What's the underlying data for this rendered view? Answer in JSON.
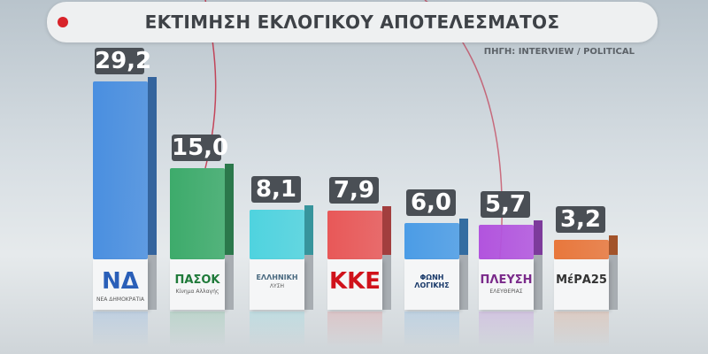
{
  "header": {
    "title": "ΕΚΤΙΜΗΣΗ ΕΚΛΟΓΙΚΟΥ ΑΠΟΤΕΛΕΣΜΑΤΟΣ",
    "source": "ΠΗΓΗ: INTERVIEW / POLITICAL"
  },
  "chart_data": {
    "type": "bar",
    "title": "ΕΚΤΙΜΗΣΗ ΕΚΛΟΓΙΚΟΥ ΑΠΟΤΕΛΕΣΜΑΤΟΣ",
    "categories": [
      "ΝΕΑ ΔΗΜΟΚΡΑΤΙΑ",
      "ΠΑΣΟΚ",
      "ΕΛΛΗΝΙΚΗ ΛΥΣΗ",
      "ΚΚΕ",
      "ΦΩΝΗ ΛΟΓΙΚΗΣ",
      "ΠΛΕΥΣΗ ΕΛΕΥΘΕΡΙΑΣ",
      "ΜέΡΑ25"
    ],
    "values": [
      29.2,
      15.0,
      8.1,
      7.9,
      6.0,
      5.7,
      3.2
    ],
    "value_labels": [
      "29,2",
      "15,0",
      "8,1",
      "7,9",
      "6,0",
      "5,7",
      "3,2"
    ],
    "colors": [
      "#4a8fe0",
      "#3dab6b",
      "#4fd3df",
      "#e85858",
      "#4b9ce6",
      "#b254de",
      "#e8773c"
    ],
    "logos": [
      {
        "main": "ΝΔ",
        "sub": "ΝΕΑ ΔΗΜΟΚΡΑΤΙΑ",
        "color": "#2a5fb8"
      },
      {
        "main": "ΠΑΣΟΚ",
        "sub": "Κίνημα Αλλαγής",
        "color": "#1f7a3a"
      },
      {
        "main": "ΕΛΛΗΝΙΚΗ",
        "sub": "ΛΥΣΗ",
        "color": "#4a6a80"
      },
      {
        "main": "ΚΚΕ",
        "sub": "",
        "color": "#d0121b"
      },
      {
        "main": "ΦΩΝΗ ΛΟΓΙΚΗΣ",
        "sub": "",
        "color": "#1a3a6a"
      },
      {
        "main": "ΠΛΕΥΣΗ",
        "sub": "ΕΛΕΥΘΕΡΙΑΣ",
        "color": "#7a2a8a"
      },
      {
        "main": "ΜέΡΑ25",
        "sub": "",
        "color": "#333333"
      }
    ],
    "ylim": [
      0,
      30
    ]
  }
}
